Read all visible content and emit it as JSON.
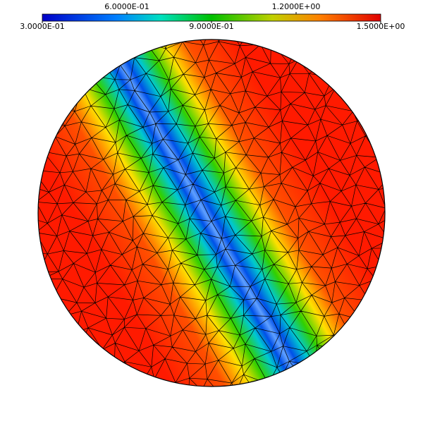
{
  "colorbar": {
    "lim": [
      0.3,
      1.5
    ],
    "ticks": [
      {
        "value": 0.3,
        "label": "3.0000E-01"
      },
      {
        "value": 0.6,
        "label": "6.0000E-01"
      },
      {
        "value": 0.9,
        "label": "9.0000E-01"
      },
      {
        "value": 1.2,
        "label": "1.2000E+00"
      },
      {
        "value": 1.5,
        "label": "1.5000E+00"
      }
    ]
  }
}
